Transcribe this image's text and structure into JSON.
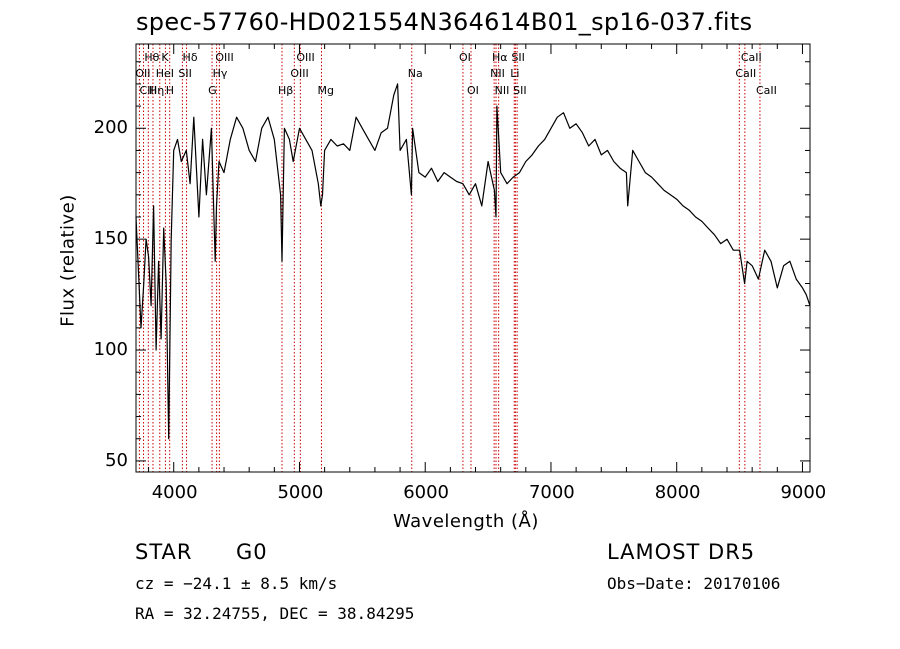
{
  "chart_data": {
    "type": "line",
    "title": "spec-57760-HD021554N364614B01_sp16-037.fits",
    "xlabel": "Wavelength (Å)",
    "ylabel": "Flux (relative)",
    "xlim": [
      3700,
      9060
    ],
    "ylim": [
      45,
      238
    ],
    "xticks": [
      "4000",
      "5000",
      "6000",
      "7000",
      "8000",
      "9000"
    ],
    "yticks": [
      "50",
      "100",
      "150",
      "200"
    ],
    "grid": false,
    "series": [
      {
        "x": [
          3700,
          3720,
          3740,
          3760,
          3780,
          3800,
          3820,
          3840,
          3860,
          3880,
          3900,
          3920,
          3940,
          3960,
          3980,
          4000,
          4030,
          4060,
          4100,
          4130,
          4160,
          4200,
          4230,
          4260,
          4300,
          4330,
          4340,
          4360,
          4400,
          4450,
          4500,
          4550,
          4600,
          4650,
          4700,
          4750,
          4800,
          4850,
          4861,
          4880,
          4920,
          4950,
          5000,
          5050,
          5100,
          5150,
          5170,
          5183,
          5200,
          5250,
          5300,
          5350,
          5400,
          5450,
          5500,
          5550,
          5600,
          5650,
          5700,
          5750,
          5780,
          5800,
          5850,
          5890,
          5900,
          5950,
          6000,
          6050,
          6100,
          6150,
          6200,
          6250,
          6300,
          6350,
          6400,
          6450,
          6500,
          6550,
          6563,
          6570,
          6600,
          6650,
          6700,
          6750,
          6800,
          6850,
          6900,
          6950,
          7000,
          7050,
          7100,
          7150,
          7200,
          7250,
          7300,
          7350,
          7400,
          7450,
          7500,
          7550,
          7600,
          7610,
          7650,
          7700,
          7750,
          7800,
          7850,
          7900,
          7950,
          8000,
          8050,
          8100,
          8150,
          8200,
          8250,
          8300,
          8350,
          8400,
          8450,
          8500,
          8540,
          8560,
          8600,
          8650,
          8700,
          8750,
          8800,
          8850,
          8900,
          8950,
          9000,
          9030,
          9060
        ],
        "y": [
          160,
          135,
          110,
          128,
          150,
          142,
          120,
          165,
          100,
          140,
          105,
          155,
          130,
          60,
          150,
          190,
          195,
          185,
          190,
          175,
          205,
          160,
          195,
          170,
          200,
          140,
          165,
          185,
          180,
          195,
          205,
          200,
          190,
          185,
          200,
          205,
          195,
          170,
          140,
          200,
          195,
          185,
          200,
          195,
          190,
          175,
          165,
          170,
          190,
          195,
          192,
          193,
          190,
          205,
          200,
          195,
          190,
          198,
          200,
          215,
          220,
          190,
          195,
          170,
          200,
          180,
          178,
          182,
          176,
          180,
          178,
          176,
          175,
          170,
          175,
          165,
          185,
          172,
          160,
          210,
          180,
          175,
          178,
          180,
          185,
          188,
          192,
          195,
          200,
          205,
          207,
          200,
          202,
          198,
          192,
          195,
          188,
          190,
          185,
          182,
          180,
          165,
          190,
          185,
          180,
          178,
          175,
          172,
          170,
          168,
          165,
          163,
          160,
          158,
          155,
          152,
          148,
          150,
          145,
          145,
          130,
          140,
          138,
          132,
          145,
          140,
          128,
          138,
          140,
          132,
          128,
          125,
          120
        ]
      }
    ],
    "annotations": [
      {
        "label": "Hθ",
        "x": 3798
      },
      {
        "label": "K",
        "x": 3934
      },
      {
        "label": "Hδ",
        "x": 4102
      },
      {
        "label": "OIII",
        "x": 4363
      },
      {
        "label": "OIII",
        "x": 5007
      },
      {
        "label": "OI",
        "x": 6300
      },
      {
        "label": "Hα",
        "x": 6563
      },
      {
        "label": "SII",
        "x": 6717
      },
      {
        "label": "CaII",
        "x": 8542
      },
      {
        "label": "OII",
        "x": 3727
      },
      {
        "label": "HeI",
        "x": 3889
      },
      {
        "label": "SII",
        "x": 4069
      },
      {
        "label": "Hγ",
        "x": 4341
      },
      {
        "label": "OIII",
        "x": 4959
      },
      {
        "label": "Na",
        "x": 5893
      },
      {
        "label": "NII",
        "x": 6548
      },
      {
        "label": "Li",
        "x": 6708
      },
      {
        "label": "CaII",
        "x": 8498
      },
      {
        "label": "CIII",
        "x": 3760
      },
      {
        "label": "Hη",
        "x": 3835
      },
      {
        "label": "H",
        "x": 3968
      },
      {
        "label": "G",
        "x": 4305
      },
      {
        "label": "Hβ",
        "x": 4861
      },
      {
        "label": "Mg",
        "x": 5175
      },
      {
        "label": "OI",
        "x": 6364
      },
      {
        "label": "NII",
        "x": 6584
      },
      {
        "label": "SII",
        "x": 6731
      },
      {
        "label": "CaII",
        "x": 8662
      }
    ],
    "line_markers": [
      3727,
      3760,
      3798,
      3835,
      3889,
      3934,
      3968,
      4069,
      4102,
      4305,
      4341,
      4363,
      4861,
      4959,
      5007,
      5175,
      5893,
      6300,
      6364,
      6548,
      6563,
      6584,
      6708,
      6717,
      6731,
      8498,
      8542,
      8662
    ]
  },
  "info": {
    "object_class": "STAR",
    "subclass": "G0",
    "survey": "LAMOST DR5",
    "velocity": "cz = −24.1 ± 8.5 km/s",
    "obs_date": "Obs−Date: 20170106",
    "coords": "RA =  32.24755, DEC =  38.84295"
  },
  "colors": {
    "spectrum": "#000000",
    "markers": "#cc0000",
    "axes": "#000000"
  }
}
